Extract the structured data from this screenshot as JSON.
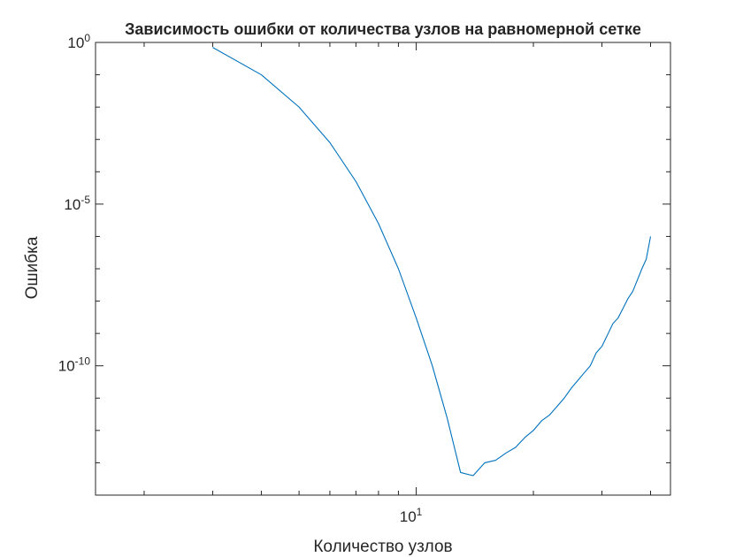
{
  "chart_data": {
    "type": "line",
    "title": "Зависимость ошибки от количества узлов на равномерной сетке",
    "xlabel": "Количество узлов",
    "ylabel": "Ошибка",
    "xscale": "log",
    "yscale": "log",
    "xlim": [
      1.5,
      45
    ],
    "ylim": [
      1e-14,
      1
    ],
    "x_tick_labels": [
      {
        "value": 10,
        "base": "10",
        "exp": "1"
      }
    ],
    "y_tick_labels": [
      {
        "value": 1,
        "base": "10",
        "exp": "0"
      },
      {
        "value": 1e-05,
        "base": "10",
        "exp": "-5"
      },
      {
        "value": 1e-10,
        "base": "10",
        "exp": "-10"
      }
    ],
    "grid": false,
    "colors": {
      "series": "#0072BD",
      "axes": "#262626"
    },
    "series": [
      {
        "x": [
          3,
          4,
          5,
          6,
          7,
          8,
          9,
          10,
          11,
          12,
          13,
          14,
          15,
          16,
          17,
          18,
          19,
          20,
          21,
          22,
          23,
          24,
          25,
          26,
          27,
          28,
          29,
          30,
          31,
          32,
          33,
          34,
          35,
          36,
          37,
          38,
          39,
          40
        ],
        "y": [
          0.7,
          0.1,
          0.01,
          0.0008,
          5e-05,
          2.5e-06,
          1e-07,
          3e-09,
          1e-10,
          2.5e-12,
          5e-14,
          4e-14,
          1e-13,
          1.2e-13,
          2e-13,
          3e-13,
          6e-13,
          1e-12,
          2e-12,
          3e-12,
          5.5e-12,
          1e-11,
          2e-11,
          3.5e-11,
          6e-11,
          1e-10,
          2.5e-10,
          4e-10,
          9e-10,
          2e-09,
          3e-09,
          6e-09,
          1.2e-08,
          2e-08,
          4.5e-08,
          1e-07,
          2e-07,
          1e-06
        ]
      }
    ]
  }
}
